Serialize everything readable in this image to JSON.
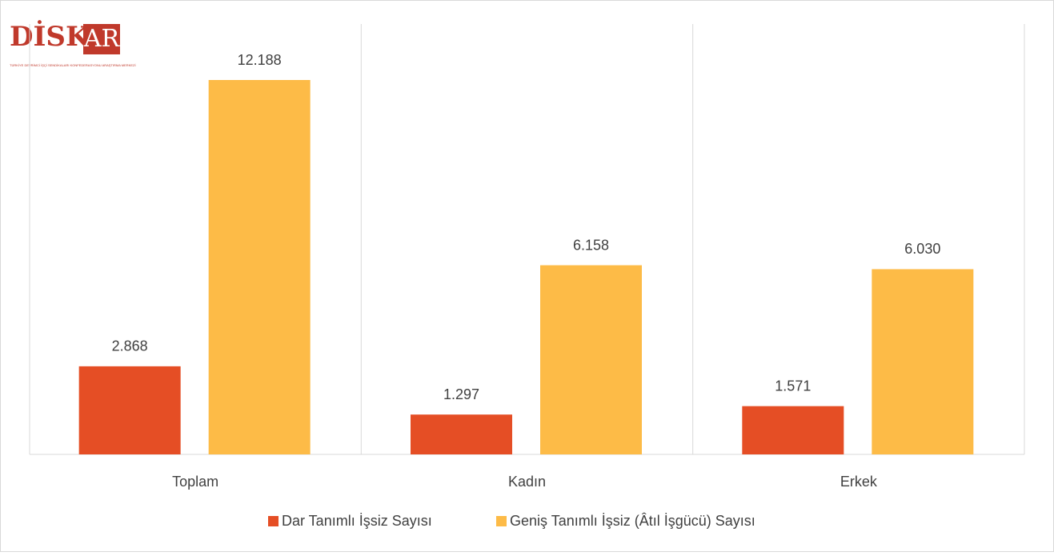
{
  "logo": {
    "main": "DİSK",
    "box": "AR",
    "caption": "TÜRKİYE DEVRİMCİ İŞÇİ SENDİKALARI KONFEDERASYONU ARAŞTIRMA MERKEZİ"
  },
  "chart_data": {
    "type": "bar",
    "categories": [
      "Toplam",
      "Kadın",
      "Erkek"
    ],
    "series": [
      {
        "name": "Dar Tanımlı İşsiz Sayısı",
        "color": "#e54e25",
        "values": [
          2868,
          1297,
          1571
        ],
        "value_labels": [
          "2.868",
          "1.297",
          "1.571"
        ]
      },
      {
        "name": "Geniş Tanımlı İşsiz (Âtıl İşgücü) Sayısı",
        "color": "#fdbb47",
        "values": [
          12188,
          6158,
          6030
        ],
        "value_labels": [
          "12.188",
          "6.158",
          "6.030"
        ]
      }
    ],
    "legend": "bottom"
  }
}
